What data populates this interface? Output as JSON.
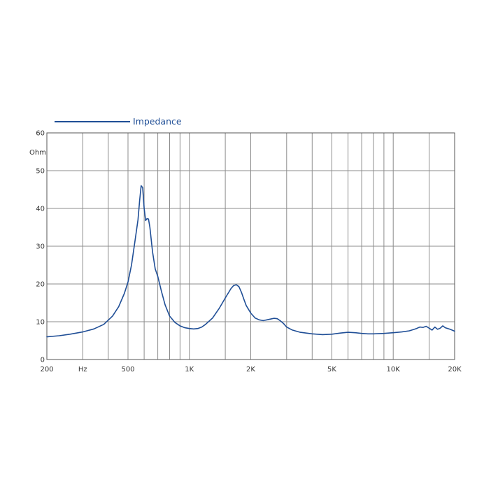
{
  "chart_data": {
    "type": "line",
    "x_scale": "log",
    "xlim": [
      200,
      20000
    ],
    "ylim": [
      0,
      60
    ],
    "grid": true,
    "legend_position": "top-left",
    "ylabel": "Ohm",
    "xlabel": "Hz",
    "colors": {
      "series": "#1f4e96",
      "grid": "#8c8c8c",
      "axis": "#555555"
    },
    "x_ticks": [
      {
        "value": 200,
        "label": "200"
      },
      {
        "value": 500,
        "label": "500"
      },
      {
        "value": 1000,
        "label": "1K"
      },
      {
        "value": 2000,
        "label": "2K"
      },
      {
        "value": 5000,
        "label": "5K"
      },
      {
        "value": 10000,
        "label": "10K"
      },
      {
        "value": 20000,
        "label": "20K"
      }
    ],
    "x_unit_tick": {
      "value": 300,
      "label": "Hz"
    },
    "x_gridlines": [
      300,
      400,
      500,
      600,
      700,
      800,
      900,
      1000,
      1500,
      2000,
      3000,
      4000,
      5000,
      6000,
      7000,
      8000,
      9000,
      10000,
      15000,
      20000
    ],
    "y_ticks": [
      {
        "value": 0,
        "label": "0"
      },
      {
        "value": 10,
        "label": "10"
      },
      {
        "value": 20,
        "label": "20"
      },
      {
        "value": 30,
        "label": "30"
      },
      {
        "value": 40,
        "label": "40"
      },
      {
        "value": 50,
        "label": "50"
      },
      {
        "value": 60,
        "label": "60"
      }
    ],
    "series": [
      {
        "name": "Impedance",
        "x": [
          200,
          230,
          260,
          300,
          340,
          380,
          420,
          450,
          480,
          500,
          520,
          540,
          560,
          570,
          580,
          590,
          600,
          610,
          620,
          630,
          640,
          660,
          680,
          700,
          730,
          760,
          800,
          850,
          900,
          950,
          1000,
          1050,
          1100,
          1150,
          1200,
          1300,
          1400,
          1500,
          1600,
          1650,
          1700,
          1750,
          1800,
          1850,
          1900,
          2000,
          2100,
          2200,
          2300,
          2400,
          2500,
          2600,
          2700,
          2800,
          2900,
          3000,
          3200,
          3500,
          4000,
          4500,
          5000,
          5500,
          6000,
          6500,
          7000,
          7500,
          8000,
          9000,
          10000,
          11000,
          12000,
          13000,
          13500,
          14000,
          14500,
          15000,
          15500,
          16000,
          16500,
          17000,
          17500,
          18000,
          19000,
          20000
        ],
        "y": [
          6.0,
          6.3,
          6.7,
          7.3,
          8.1,
          9.3,
          11.5,
          14.0,
          17.5,
          20.5,
          25.0,
          31.0,
          37.0,
          42.0,
          46.0,
          45.5,
          40.0,
          36.8,
          37.3,
          37.2,
          35.0,
          28.5,
          24.0,
          22.0,
          18.0,
          14.5,
          11.5,
          9.8,
          8.9,
          8.4,
          8.2,
          8.1,
          8.2,
          8.6,
          9.3,
          11.0,
          13.5,
          16.3,
          18.8,
          19.6,
          19.8,
          19.3,
          17.8,
          16.0,
          14.3,
          12.3,
          11.0,
          10.5,
          10.3,
          10.5,
          10.7,
          10.9,
          10.8,
          10.2,
          9.5,
          8.6,
          7.8,
          7.2,
          6.8,
          6.6,
          6.7,
          7.0,
          7.2,
          7.1,
          6.9,
          6.8,
          6.8,
          6.9,
          7.1,
          7.3,
          7.6,
          8.2,
          8.6,
          8.5,
          8.8,
          8.3,
          7.8,
          8.6,
          8.0,
          8.3,
          8.9,
          8.4,
          8.0,
          7.5
        ]
      }
    ]
  }
}
